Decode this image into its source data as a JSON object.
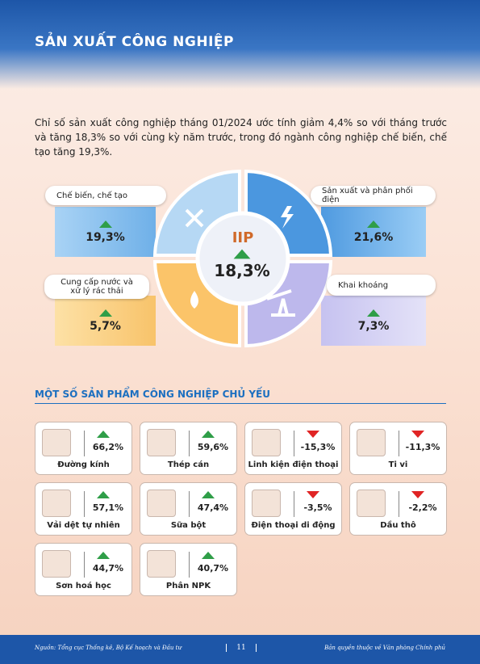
{
  "header": {
    "title": "SẢN XUẤT CÔNG NGHIỆP"
  },
  "intro": "Chỉ số sản xuất công nghiệp tháng 01/2024 ước tính giảm 4,4% so với tháng trước và tăng 18,3% so với cùng kỳ năm trước, trong đó ngành công nghiệp chế biến, chế tạo tăng 19,3%.",
  "iip": {
    "label": "IIP",
    "value": "18,3%",
    "trend": "up"
  },
  "sectors": [
    {
      "name": "Chế biến, chế tạo",
      "value": "19,3%",
      "trend": "up"
    },
    {
      "name": "Sản xuất và phân phối điện",
      "value": "21,6%",
      "trend": "up"
    },
    {
      "name": "Cung cấp nước và xử lý rác thải",
      "value": "5,7%",
      "trend": "up"
    },
    {
      "name": "Khai khoáng",
      "value": "7,3%",
      "trend": "up"
    }
  ],
  "products": {
    "title": "MỘT SỐ SẢN PHẨM CÔNG NGHIỆP CHỦ YẾU",
    "items": [
      {
        "name": "Đường kính",
        "value": "66,2%",
        "trend": "up"
      },
      {
        "name": "Thép cán",
        "value": "59,6%",
        "trend": "up"
      },
      {
        "name": "Linh kiện điện thoại",
        "value": "-15,3%",
        "trend": "down"
      },
      {
        "name": "Ti vi",
        "value": "-11,3%",
        "trend": "down"
      },
      {
        "name": "Vải dệt tự nhiên",
        "value": "57,1%",
        "trend": "up"
      },
      {
        "name": "Sữa bột",
        "value": "47,4%",
        "trend": "up"
      },
      {
        "name": "Điện thoại di động",
        "value": "-3,5%",
        "trend": "down"
      },
      {
        "name": "Dầu thô",
        "value": "-2,2%",
        "trend": "down"
      },
      {
        "name": "Sơn hoá học",
        "value": "44,7%",
        "trend": "up"
      },
      {
        "name": "Phân NPK",
        "value": "40,7%",
        "trend": "up"
      }
    ]
  },
  "footer": {
    "source": "Nguồn: Tổng cục Thống kê, Bộ Kế hoạch và Đầu tư",
    "page": "11",
    "rights": "Bản quyền thuộc về Văn phòng Chính phủ"
  }
}
